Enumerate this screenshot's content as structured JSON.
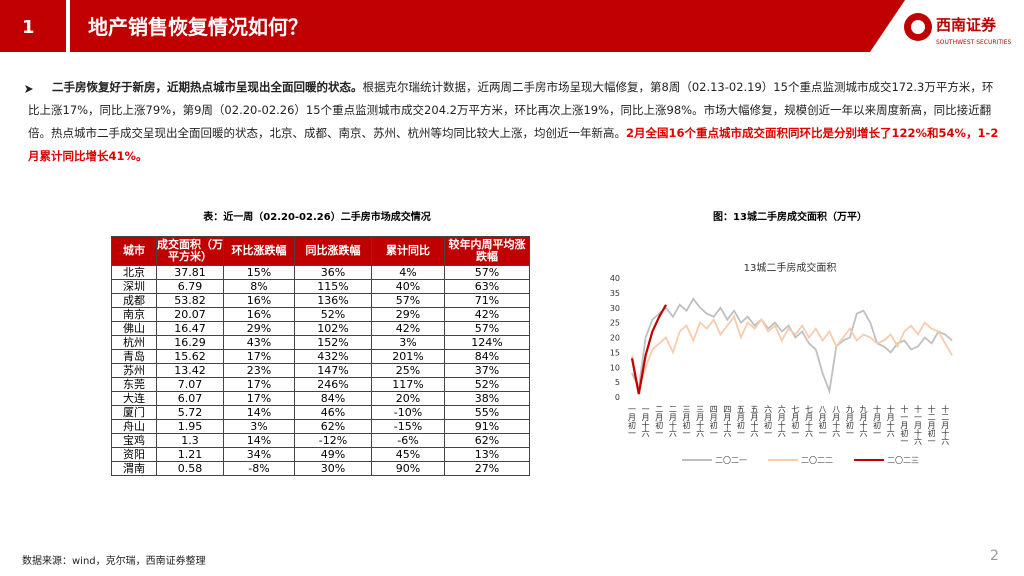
{
  "header": {
    "number": "1",
    "title": "地产销售恢复情况如何？",
    "logo": "西南证券",
    "logo_en": "SOUTHWEST SECURITIES"
  },
  "paragraph": {
    "bold": "二手房恢复好于新房，近期热点城市呈现出全面回暖的状态。",
    "normal": "根据克尔瑞统计数据，近两周二手房市场呈现大幅修复，第8周（02.13-02.19）15个重点监测城市成交172.3万平方米，环比上涨17%，同比上涨79%，第9周（02.20-02.26）15个重点监测城市成交204.2万平方米，环比再次上涨19%，同比上涨98%。市场大幅修复，规模创近一年以来周度新高，同比接近翻倍。热点城市二手成交呈现出全面回暖的状态，北京、成都、南京、苏州、杭州等均同比较大上涨，均创近一年新高。",
    "highlight": "2月全国16个重点城市成交面积同环比是分别增长了122%和54%，1-2月累计同比增长41%。"
  },
  "table": {
    "caption": "表：近一周（02.20-02.26）二手房市场成交情况",
    "headers": [
      "城市",
      "成交面积（万平方米）",
      "环比涨跌幅",
      "同比涨跌幅",
      "累计同比",
      "较年内周平均涨跌幅"
    ],
    "rows": [
      [
        "北京",
        "37.81",
        "15%",
        "36%",
        "4%",
        "57%"
      ],
      [
        "深圳",
        "6.79",
        "8%",
        "115%",
        "40%",
        "63%"
      ],
      [
        "成都",
        "53.82",
        "16%",
        "136%",
        "57%",
        "71%"
      ],
      [
        "南京",
        "20.07",
        "16%",
        "52%",
        "29%",
        "42%"
      ],
      [
        "佛山",
        "16.47",
        "29%",
        "102%",
        "42%",
        "57%"
      ],
      [
        "杭州",
        "16.29",
        "43%",
        "152%",
        "3%",
        "124%"
      ],
      [
        "青岛",
        "15.62",
        "17%",
        "432%",
        "201%",
        "84%"
      ],
      [
        "苏州",
        "13.42",
        "23%",
        "147%",
        "25%",
        "37%"
      ],
      [
        "东莞",
        "7.07",
        "17%",
        "246%",
        "117%",
        "52%"
      ],
      [
        "大连",
        "6.07",
        "17%",
        "84%",
        "20%",
        "38%"
      ],
      [
        "厦门",
        "5.72",
        "14%",
        "46%",
        "-10%",
        "55%"
      ],
      [
        "舟山",
        "1.95",
        "3%",
        "62%",
        "-15%",
        "91%"
      ],
      [
        "宝鸡",
        "1.3",
        "14%",
        "-12%",
        "-6%",
        "62%"
      ],
      [
        "资阳",
        "1.21",
        "34%",
        "49%",
        "45%",
        "13%"
      ],
      [
        "渭南",
        "0.58",
        "-8%",
        "30%",
        "90%",
        "27%"
      ]
    ]
  },
  "chart_caption": "图：13城二手房成交面积（万平）",
  "chart_data": {
    "type": "line",
    "title": "13城二手房成交面积",
    "categories": [
      "一月初一",
      null,
      "一月十六",
      null,
      "二月初一",
      null,
      "二月十六",
      null,
      "三月初一",
      null,
      "三月十六",
      null,
      "四月初一",
      null,
      "四月十六",
      null,
      "五月初一",
      null,
      "五月十六",
      null,
      "六月初一",
      null,
      "六月十六",
      null,
      "七月初一",
      null,
      "七月十六",
      null,
      "八月初一",
      null,
      "八月十六",
      null,
      "九月初一",
      null,
      "九月十六",
      null,
      "十月初一",
      null,
      "十月十六",
      null,
      "十一月初一",
      null,
      "十一月十六",
      null,
      "十二月初一",
      null,
      "十二月十六",
      null
    ],
    "series": [
      {
        "name": "二〇二一",
        "color": "#bfbfbf",
        "values": [
          8,
          3,
          20,
          26,
          28,
          30,
          27,
          31,
          29,
          33,
          30,
          28,
          27,
          30,
          26,
          29,
          25,
          27,
          24,
          26,
          23,
          25,
          22,
          24,
          20,
          22,
          18,
          16,
          8,
          2,
          17,
          19,
          20,
          28,
          29,
          25,
          18,
          17,
          15,
          18,
          19,
          16,
          17,
          20,
          18,
          22,
          21,
          19
        ]
      },
      {
        "name": "二〇二二",
        "color": "#f8cbad",
        "values": [
          14,
          2,
          10,
          16,
          18,
          20,
          15,
          22,
          24,
          19,
          25,
          23,
          26,
          21,
          24,
          27,
          20,
          25,
          23,
          26,
          22,
          24,
          19,
          23,
          21,
          24,
          20,
          23,
          19,
          22,
          17,
          20,
          23,
          19,
          21,
          20,
          18,
          19,
          21,
          17,
          22,
          24,
          21,
          25,
          23,
          22,
          18,
          14
        ]
      },
      {
        "name": "二〇二三",
        "color": "#c00000",
        "values": [
          13,
          1,
          14,
          22,
          27,
          31,
          null,
          null,
          null,
          null,
          null,
          null,
          null,
          null,
          null,
          null,
          null,
          null,
          null,
          null,
          null,
          null,
          null,
          null,
          null,
          null,
          null,
          null,
          null,
          null,
          null,
          null,
          null,
          null,
          null,
          null,
          null,
          null,
          null,
          null,
          null,
          null,
          null,
          null,
          null,
          null,
          null,
          null
        ]
      }
    ],
    "ylim": [
      0,
      40
    ],
    "yticks": [
      0,
      5,
      10,
      15,
      20,
      25,
      30,
      35,
      40
    ]
  },
  "footer": {
    "source": "数据来源：wind，克尔瑞，西南证券整理",
    "page": "2"
  }
}
